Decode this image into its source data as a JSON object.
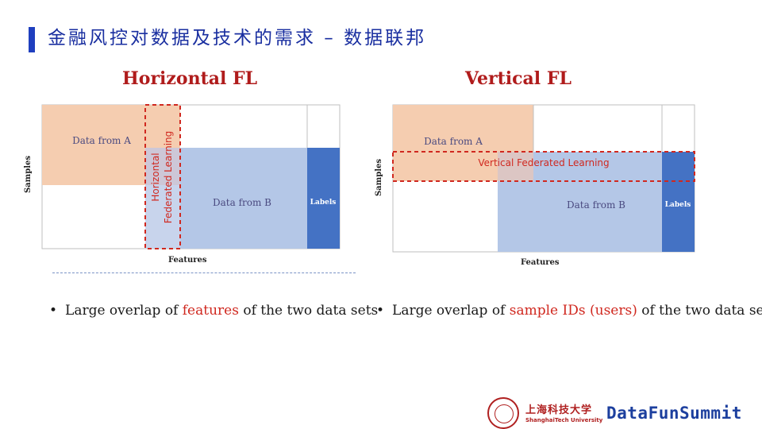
{
  "slide": {
    "title": "金融风控对数据及技术的需求 – 数据联邦"
  },
  "horizontal": {
    "heading": "Horizontal FL",
    "data_a": "Data from A",
    "data_b": "Data from B",
    "labels": "Labels",
    "overlay_line1": "Horizontal",
    "overlay_line2": "Federated Learning",
    "ylabel": "Samples",
    "xlabel": "Features",
    "bullet_pre": "Large overlap of ",
    "bullet_hl": "features",
    "bullet_post": " of the two data sets"
  },
  "vertical": {
    "heading": "Vertical FL",
    "data_a": "Data from A",
    "data_b": "Data from B",
    "labels": "Labels",
    "overlay": "Vertical Federated Learning",
    "ylabel": "Samples",
    "xlabel": "Features",
    "bullet_pre": "Large overlap of ",
    "bullet_hl": "sample IDs (users)",
    "bullet_post": " of the two data sets"
  },
  "footer": {
    "univ_cn": "上海科技大学",
    "univ_en": "ShanghaiTech University",
    "brand": "DataFunSummit"
  },
  "colors": {
    "title": "#1a2fa0",
    "heading": "#b01c1c",
    "data_a": "#f5cdb0",
    "data_b": "#b4c7e7",
    "labels": "#4472c4",
    "overlay": "#d0281f"
  }
}
